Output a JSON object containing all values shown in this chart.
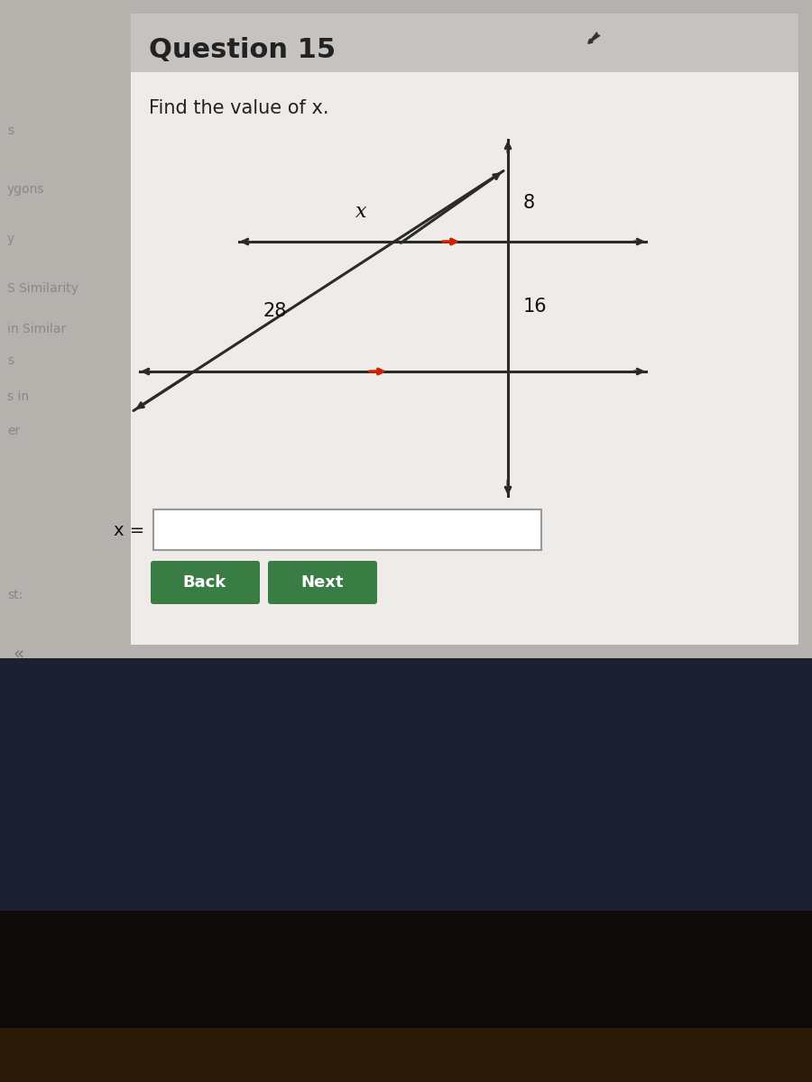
{
  "title": "Question 15",
  "subtitle": "Find the value of x.",
  "bg_color_top": "#b8b4b0",
  "bg_color_white": "#f0eeec",
  "bg_color_dark": "#1c2030",
  "bg_color_bottom": "#151010",
  "header_color": "#c8c5c2",
  "label_x": "x",
  "label_8": "8",
  "label_28": "28",
  "label_16": "16",
  "input_label": "x =",
  "back_btn": "Back",
  "next_btn": "Next",
  "btn_color": "#3a7d44",
  "btn_text_color": "#ffffff",
  "left_sidebar_labels": [
    "s",
    "ygons",
    "y",
    "S Similarity",
    "in Similar",
    "s",
    "s in",
    "er",
    "st:"
  ],
  "chevron": "«",
  "line_color": "#2a2a2a",
  "red_color": "#cc2200",
  "cursor_color": "#333333"
}
